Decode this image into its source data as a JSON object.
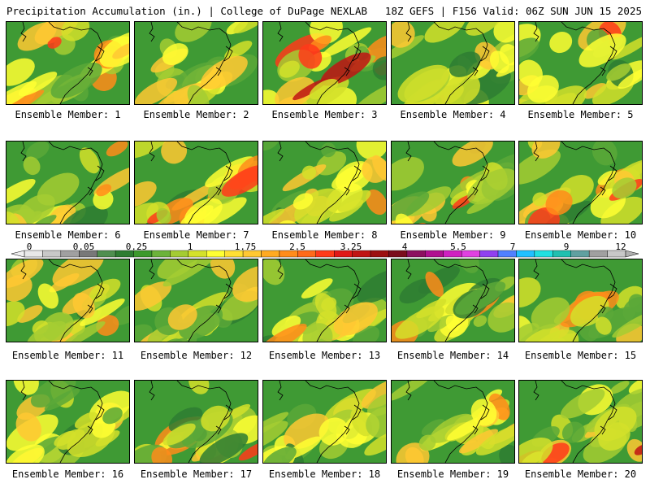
{
  "header": {
    "title_left": "Precipitation Accumulation (in.) | College of DuPage NEXLAB",
    "title_right": "18Z GEFS | F156 Valid: 06Z SUN JUN 15 2025"
  },
  "panels": [
    {
      "label": "Ensemble Member: 1",
      "intensity": 0.55
    },
    {
      "label": "Ensemble Member: 2",
      "intensity": 0.45
    },
    {
      "label": "Ensemble Member: 3",
      "intensity": 0.75
    },
    {
      "label": "Ensemble Member: 4",
      "intensity": 0.5
    },
    {
      "label": "Ensemble Member: 5",
      "intensity": 0.6
    },
    {
      "label": "Ensemble Member: 6",
      "intensity": 0.45
    },
    {
      "label": "Ensemble Member: 7",
      "intensity": 0.8
    },
    {
      "label": "Ensemble Member: 8",
      "intensity": 0.4
    },
    {
      "label": "Ensemble Member: 9",
      "intensity": 0.65
    },
    {
      "label": "Ensemble Member: 10",
      "intensity": 0.75
    },
    {
      "label": "Ensemble Member: 11",
      "intensity": 0.5
    },
    {
      "label": "Ensemble Member: 12",
      "intensity": 0.4
    },
    {
      "label": "Ensemble Member: 13",
      "intensity": 0.65
    },
    {
      "label": "Ensemble Member: 14",
      "intensity": 0.3
    },
    {
      "label": "Ensemble Member: 15",
      "intensity": 0.4
    },
    {
      "label": "Ensemble Member: 16",
      "intensity": 0.45
    },
    {
      "label": "Ensemble Member: 17",
      "intensity": 0.45
    },
    {
      "label": "Ensemble Member: 18",
      "intensity": 0.35
    },
    {
      "label": "Ensemble Member: 19",
      "intensity": 0.45
    },
    {
      "label": "Ensemble Member: 20",
      "intensity": 0.75
    }
  ],
  "colorbar": {
    "labels": [
      "0",
      "0.05",
      "0.25",
      "1",
      "1.75",
      "2.5",
      "3.25",
      "4",
      "5.5",
      "7",
      "9",
      "12"
    ],
    "colors": [
      "#e8e8e8",
      "#c8c8c8",
      "#a0a0a0",
      "#787878",
      "#4f8f4f",
      "#2e7d32",
      "#3c9a2c",
      "#6cb33a",
      "#a4cc33",
      "#d4e12a",
      "#ffff33",
      "#ffe033",
      "#ffc833",
      "#ffaa22",
      "#ff8c1a",
      "#ff6a1a",
      "#ff3a1a",
      "#e01818",
      "#c01414",
      "#9c1010",
      "#7a0c1c",
      "#8c1060",
      "#b01090",
      "#d020c0",
      "#e040e0",
      "#9040f0",
      "#5080ff",
      "#20c0ff",
      "#20e0e0",
      "#20c0b0",
      "#60a0a0",
      "#a0a0a0",
      "#c8c8c8"
    ]
  }
}
